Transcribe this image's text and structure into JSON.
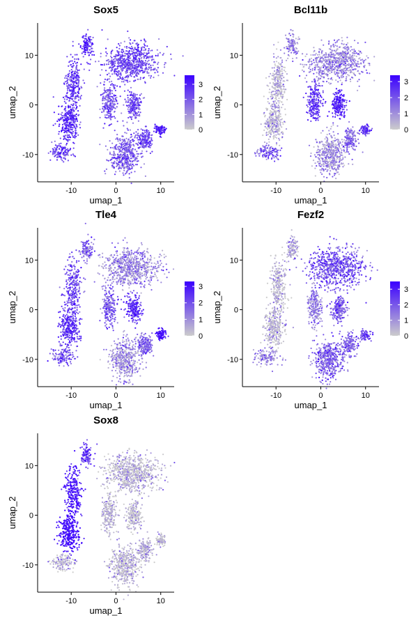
{
  "chart_data": [
    {
      "type": "scatter",
      "title": "Sox5",
      "xlabel": "umap_1",
      "ylabel": "umap_2",
      "xlim": [
        -17.5,
        13
      ],
      "ylim": [
        -15.5,
        16.5
      ],
      "x_ticks": [
        -10,
        0,
        10
      ],
      "y_ticks": [
        -10,
        0,
        10
      ],
      "grid": false,
      "color_scale": {
        "min": 0,
        "max": 3.6,
        "ticks": [
          0,
          1,
          2,
          3
        ],
        "low_color": "#cccccc",
        "high_color": "#3a00ff"
      },
      "expression": {
        "a": 0.8,
        "b": 0.7,
        "c": 0.75,
        "d": 0.65,
        "e": 0.55,
        "f": 0.6,
        "g": 0.6,
        "h": 0.85,
        "i": 0.5,
        "j": 0.6
      }
    },
    {
      "type": "scatter",
      "title": "Bcl11b",
      "xlabel": "umap_1",
      "ylabel": "umap_2",
      "xlim": [
        -17.5,
        13
      ],
      "ylim": [
        -15.5,
        16.5
      ],
      "x_ticks": [
        -10,
        0,
        10
      ],
      "y_ticks": [
        -10,
        0,
        10
      ],
      "grid": false,
      "color_scale": {
        "min": 0,
        "max": 3.4,
        "ticks": [
          0,
          1,
          2,
          3
        ],
        "low_color": "#cccccc",
        "high_color": "#3a00ff"
      },
      "expression": {
        "a": 0.3,
        "b": 0.1,
        "c": 0.1,
        "d": 0.5,
        "e": 0.7,
        "f": 0.8,
        "g": 0.3,
        "h": 0.7,
        "i": 0.25,
        "j": 0.45
      }
    },
    {
      "type": "scatter",
      "title": "Tle4",
      "xlabel": "umap_1",
      "ylabel": "umap_2",
      "xlim": [
        -17.5,
        13
      ],
      "ylim": [
        -15.5,
        16.5
      ],
      "x_ticks": [
        -10,
        0,
        10
      ],
      "y_ticks": [
        -10,
        0,
        10
      ],
      "grid": false,
      "color_scale": {
        "min": 0,
        "max": 3.3,
        "ticks": [
          0,
          1,
          2,
          3
        ],
        "low_color": "#cccccc",
        "high_color": "#3a00ff"
      },
      "expression": {
        "a": 0.45,
        "b": 0.6,
        "c": 0.7,
        "d": 0.55,
        "e": 0.5,
        "f": 0.75,
        "g": 0.3,
        "h": 0.9,
        "i": 0.25,
        "j": 0.5
      }
    },
    {
      "type": "scatter",
      "title": "Fezf2",
      "xlabel": "umap_1",
      "ylabel": "umap_2",
      "xlim": [
        -17.5,
        13
      ],
      "ylim": [
        -15.5,
        16.5
      ],
      "x_ticks": [
        -10,
        0,
        10
      ],
      "y_ticks": [
        -10,
        0,
        10
      ],
      "grid": false,
      "color_scale": {
        "min": 0,
        "max": 3.5,
        "ticks": [
          0,
          1,
          2,
          3
        ],
        "low_color": "#cccccc",
        "high_color": "#3a00ff"
      },
      "expression": {
        "a": 0.15,
        "b": 0.05,
        "c": 0.05,
        "d": 0.3,
        "e": 0.35,
        "f": 0.55,
        "g": 0.55,
        "h": 0.6,
        "i": 0.5,
        "j": 0.45
      }
    },
    {
      "type": "scatter",
      "title": "Sox8",
      "xlabel": "umap_1",
      "ylabel": "umap_2",
      "xlim": [
        -17.5,
        13
      ],
      "ylim": [
        -15.5,
        16.5
      ],
      "x_ticks": [
        -10,
        0,
        10
      ],
      "y_ticks": [
        -10,
        0,
        10
      ],
      "grid": false,
      "color_scale": {
        "min": 0,
        "max": 3.5,
        "ticks": [
          0,
          1,
          2,
          3
        ],
        "low_color": "#cccccc",
        "high_color": "#3a00ff"
      },
      "expression": {
        "a": 0.7,
        "b": 0.85,
        "c": 0.95,
        "d": 0.05,
        "e": 0.05,
        "f": 0.05,
        "g": 0.05,
        "h": 0.05,
        "i": 0.05,
        "j": 0.1
      }
    }
  ],
  "clusters": [
    {
      "id": "a",
      "cx": -6.5,
      "cy": 12.0,
      "rx": 1.2,
      "ry": 2.2,
      "n": 110
    },
    {
      "id": "b",
      "cx": -9.5,
      "cy": 4.5,
      "rx": 1.6,
      "ry": 5.0,
      "n": 260
    },
    {
      "id": "c",
      "cx": -10.5,
      "cy": -3.5,
      "rx": 2.0,
      "ry": 3.5,
      "n": 300
    },
    {
      "id": "d",
      "cx": -12.0,
      "cy": -9.5,
      "rx": 2.5,
      "ry": 1.5,
      "n": 120
    },
    {
      "id": "e",
      "cx": -1.5,
      "cy": 0.5,
      "rx": 1.5,
      "ry": 3.5,
      "n": 220
    },
    {
      "id": "f",
      "cx": 4.0,
      "cy": 0.0,
      "rx": 1.5,
      "ry": 2.5,
      "n": 200
    },
    {
      "id": "g",
      "cx": 3.5,
      "cy": 8.5,
      "rx": 5.5,
      "ry": 3.5,
      "n": 700
    },
    {
      "id": "h",
      "cx": 10.0,
      "cy": -5.0,
      "rx": 1.0,
      "ry": 1.0,
      "n": 90
    },
    {
      "id": "i",
      "cx": 2.0,
      "cy": -10.0,
      "rx": 3.0,
      "ry": 3.5,
      "n": 450
    },
    {
      "id": "j",
      "cx": 6.5,
      "cy": -7.0,
      "rx": 1.5,
      "ry": 2.0,
      "n": 160
    }
  ]
}
